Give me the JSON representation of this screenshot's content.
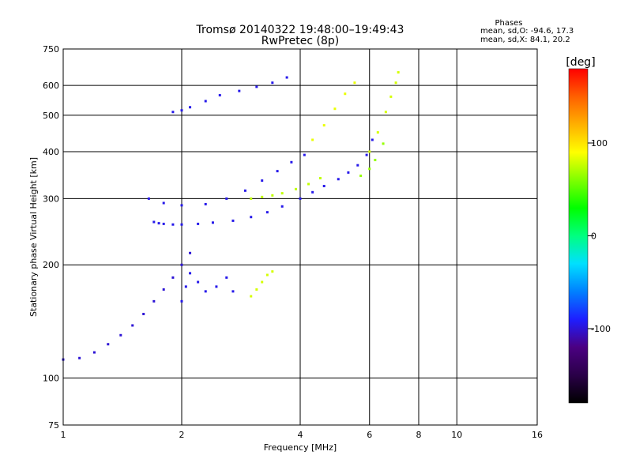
{
  "title_line1": "Tromsø 20140322 19:48:00–19:49:43",
  "title_line2": "RwPretec (8p)",
  "phases": {
    "heading": "Phases",
    "line_o": "mean, sd,O: -94.6, 17.3",
    "line_x": "mean, sd,X:  84.1, 20.2"
  },
  "colorbar": {
    "label": "[deg]",
    "range": [
      -180,
      180
    ],
    "ticks": [
      "100",
      "0",
      "-100"
    ],
    "tick_values": [
      100,
      0,
      -100
    ],
    "colors": [
      "#000000",
      "#2a0048",
      "#4b0082",
      "#1e1eff",
      "#0080ff",
      "#00e0ff",
      "#00ff80",
      "#00ff00",
      "#80ff00",
      "#ffff00",
      "#ffb000",
      "#ff6000",
      "#ff0000"
    ]
  },
  "chart_data": {
    "type": "scatter",
    "xlabel": "Frequency [MHz]",
    "ylabel": "Stationary phase Virtual Height [km]",
    "xscale": "log",
    "yscale": "log",
    "xlim": [
      1,
      16
    ],
    "ylim": [
      75,
      750
    ],
    "xticks": [
      1,
      2,
      4,
      6,
      8,
      10,
      16
    ],
    "xtick_labels": [
      "1",
      "2",
      "4",
      "6",
      "8",
      "10",
      "16"
    ],
    "yticks": [
      75,
      100,
      200,
      300,
      400,
      500,
      600,
      750
    ],
    "ytick_labels": [
      "75",
      "100",
      "200",
      "300",
      "400",
      "500",
      "600",
      "750"
    ],
    "grid": true,
    "color_variable": "phase [deg]",
    "series": [
      {
        "phase": -95,
        "points": [
          [
            1.7,
            260
          ],
          [
            1.75,
            258
          ],
          [
            1.8,
            257
          ],
          [
            1.9,
            256
          ],
          [
            2.0,
            256
          ],
          [
            2.2,
            257
          ],
          [
            2.4,
            259
          ],
          [
            2.7,
            262
          ],
          [
            3.0,
            268
          ],
          [
            3.3,
            276
          ],
          [
            3.6,
            286
          ],
          [
            4.0,
            300
          ],
          [
            4.3,
            312
          ],
          [
            4.6,
            324
          ],
          [
            5.0,
            338
          ],
          [
            5.3,
            352
          ],
          [
            5.6,
            368
          ],
          [
            5.9,
            392
          ],
          [
            6.1,
            430
          ]
        ]
      },
      {
        "phase": -95,
        "points": [
          [
            1.65,
            300
          ],
          [
            1.8,
            292
          ],
          [
            2.0,
            288
          ],
          [
            2.3,
            290
          ],
          [
            2.6,
            300
          ],
          [
            2.9,
            315
          ],
          [
            3.2,
            335
          ],
          [
            3.5,
            355
          ],
          [
            3.8,
            375
          ],
          [
            4.1,
            392
          ]
        ]
      },
      {
        "phase": -95,
        "points": [
          [
            1.9,
            510
          ],
          [
            2.0,
            515
          ],
          [
            2.1,
            525
          ],
          [
            2.3,
            545
          ],
          [
            2.5,
            565
          ],
          [
            2.8,
            580
          ],
          [
            3.1,
            595
          ],
          [
            3.4,
            610
          ],
          [
            3.7,
            630
          ]
        ]
      },
      {
        "phase": -100,
        "points": [
          [
            1.0,
            112
          ],
          [
            1.1,
            113
          ],
          [
            1.2,
            117
          ],
          [
            1.3,
            123
          ],
          [
            1.4,
            130
          ],
          [
            1.5,
            138
          ],
          [
            1.6,
            148
          ],
          [
            1.7,
            160
          ],
          [
            1.8,
            172
          ],
          [
            1.9,
            185
          ],
          [
            2.0,
            200
          ],
          [
            2.1,
            215
          ]
        ]
      },
      {
        "phase": -95,
        "points": [
          [
            2.0,
            160
          ],
          [
            2.05,
            175
          ],
          [
            2.1,
            190
          ],
          [
            2.2,
            180
          ],
          [
            2.3,
            170
          ],
          [
            2.45,
            175
          ],
          [
            2.6,
            185
          ],
          [
            2.7,
            170
          ]
        ]
      },
      {
        "phase": 75,
        "points": [
          [
            3.0,
            300
          ],
          [
            3.2,
            303
          ],
          [
            3.4,
            306
          ],
          [
            3.6,
            310
          ],
          [
            3.9,
            318
          ],
          [
            4.2,
            328
          ],
          [
            4.5,
            340
          ]
        ]
      },
      {
        "phase": 85,
        "points": [
          [
            4.3,
            430
          ],
          [
            4.6,
            470
          ],
          [
            4.9,
            520
          ],
          [
            5.2,
            570
          ],
          [
            5.5,
            610
          ]
        ]
      },
      {
        "phase": 80,
        "points": [
          [
            6.0,
            400
          ],
          [
            6.3,
            450
          ],
          [
            6.6,
            510
          ],
          [
            6.8,
            560
          ],
          [
            7.0,
            610
          ],
          [
            7.1,
            650
          ]
        ]
      },
      {
        "phase": 65,
        "points": [
          [
            5.7,
            345
          ],
          [
            6.0,
            360
          ],
          [
            6.2,
            380
          ],
          [
            6.5,
            420
          ]
        ]
      },
      {
        "phase": 80,
        "points": [
          [
            3.0,
            165
          ],
          [
            3.1,
            172
          ],
          [
            3.2,
            180
          ],
          [
            3.3,
            188
          ],
          [
            3.4,
            192
          ]
        ]
      }
    ]
  }
}
